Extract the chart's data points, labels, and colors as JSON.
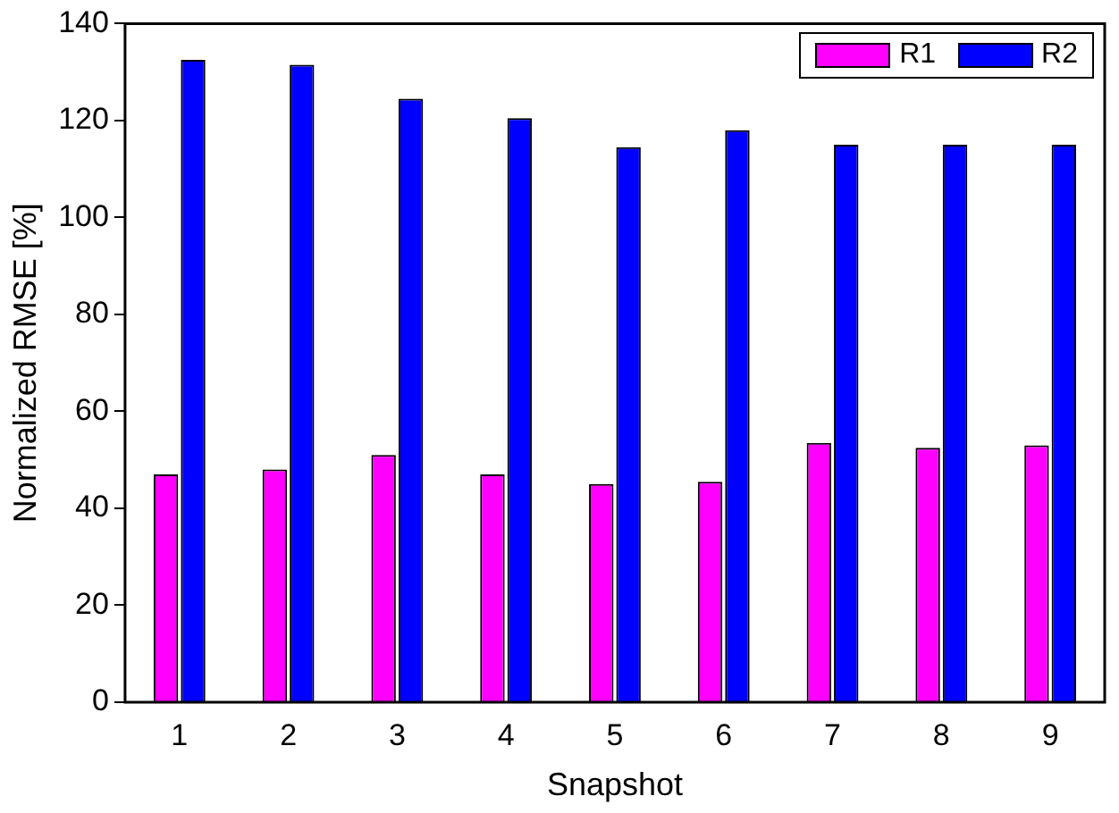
{
  "chart_data": {
    "type": "bar",
    "xlabel": "Snapshot",
    "ylabel": "Normalized RMSE [%]",
    "categories": [
      "1",
      "2",
      "3",
      "4",
      "5",
      "6",
      "7",
      "8",
      "9"
    ],
    "series": [
      {
        "name": "R1",
        "color": "#ff00ff",
        "values": [
          47,
          48,
          51,
          47,
          45,
          45.5,
          53.5,
          52.5,
          53
        ]
      },
      {
        "name": "R2",
        "color": "#0000ff",
        "values": [
          132.5,
          131.5,
          124.5,
          120.5,
          114.5,
          118,
          115,
          115,
          115
        ]
      }
    ],
    "ylim": [
      0,
      140
    ],
    "yticks": [
      0,
      20,
      40,
      60,
      80,
      100,
      120,
      140
    ],
    "grid": false,
    "legend": "top right"
  }
}
